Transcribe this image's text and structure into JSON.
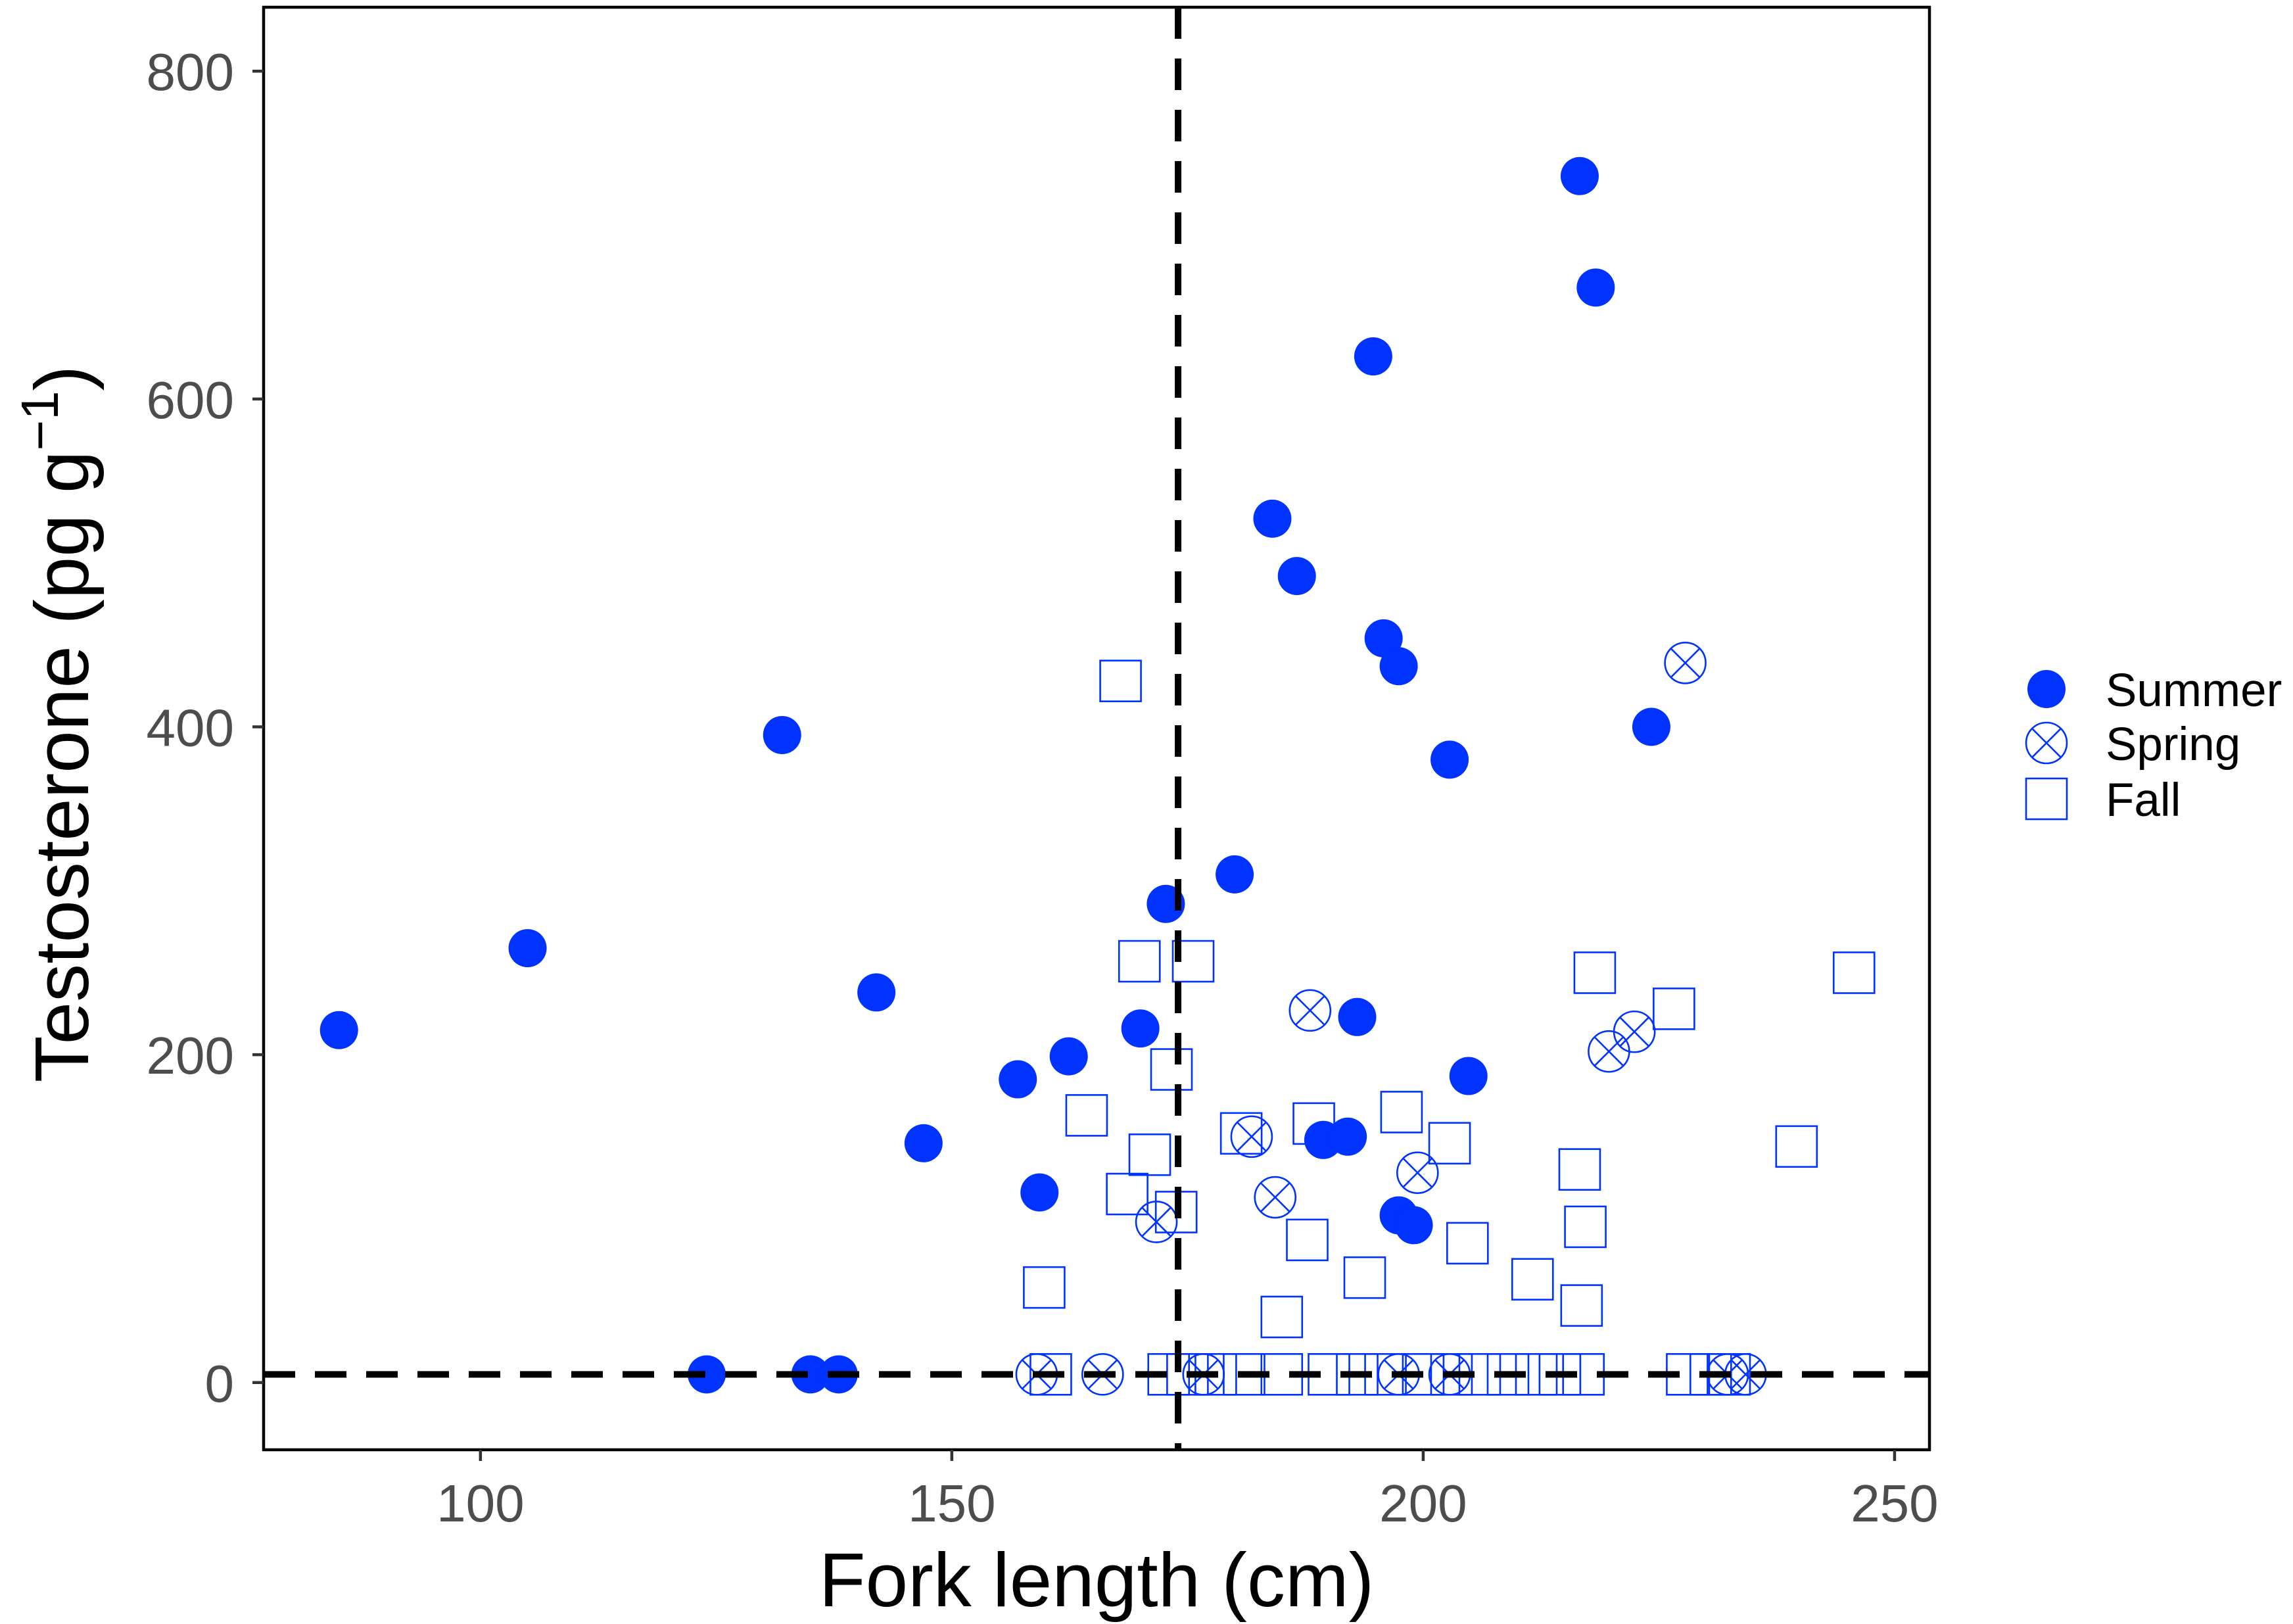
{
  "chart_data": {
    "type": "scatter",
    "title": "",
    "xlabel": "Fork length (cm)",
    "ylabel": {
      "text": "Testosterone (pg g",
      "superscript": "−1",
      "closing": ")"
    },
    "xlim": [
      77,
      253.7
    ],
    "ylim": [
      -41,
      839
    ],
    "x_ticks": [
      100,
      150,
      200,
      250
    ],
    "y_ticks": [
      0,
      200,
      400,
      600,
      800
    ],
    "grid": false,
    "legend_placement": "right",
    "tick_label_color": "#4d4d4d",
    "reference_lines": [
      {
        "orientation": "vertical",
        "x": 174,
        "style": "dashed",
        "color": "#000000"
      },
      {
        "orientation": "horizontal",
        "y": 5,
        "style": "dashed",
        "color": "#000000"
      }
    ],
    "series": [
      {
        "name": "Summer",
        "marker": "filled-circle",
        "color": "#0033ff",
        "points": [
          [
            85,
            215
          ],
          [
            105,
            265
          ],
          [
            132,
            395
          ],
          [
            142,
            238
          ],
          [
            147,
            146
          ],
          [
            157,
            185
          ],
          [
            159.3,
            116
          ],
          [
            162.4,
            199
          ],
          [
            170,
            216
          ],
          [
            172.7,
            292
          ],
          [
            180,
            310
          ],
          [
            184,
            527
          ],
          [
            186.6,
            492
          ],
          [
            193,
            223
          ],
          [
            189.4,
            148
          ],
          [
            192,
            150
          ],
          [
            194.7,
            626
          ],
          [
            195.8,
            454
          ],
          [
            197.4,
            437
          ],
          [
            197.4,
            102
          ],
          [
            199,
            96
          ],
          [
            202.8,
            380
          ],
          [
            204.8,
            187
          ],
          [
            216.6,
            736
          ],
          [
            218.3,
            668
          ],
          [
            224.2,
            400
          ],
          [
            124,
            5
          ],
          [
            135,
            5
          ],
          [
            138,
            5
          ]
        ]
      },
      {
        "name": "Spring",
        "marker": "circle-cross",
        "color": "#0033ff",
        "points": [
          [
            159,
            5
          ],
          [
            166,
            5
          ],
          [
            171.7,
            98
          ],
          [
            176.7,
            5
          ],
          [
            181.8,
            150
          ],
          [
            184.3,
            113
          ],
          [
            188,
            227
          ],
          [
            197.4,
            5
          ],
          [
            199.4,
            128
          ],
          [
            202.8,
            5
          ],
          [
            219.7,
            202
          ],
          [
            222.4,
            214
          ],
          [
            227.8,
            439
          ],
          [
            232.3,
            5
          ],
          [
            234.2,
            5
          ]
        ]
      },
      {
        "name": "Fall",
        "marker": "open-square",
        "color": "#0033ff",
        "points": [
          [
            167.9,
            428
          ],
          [
            169.9,
            257
          ],
          [
            175.6,
            257
          ],
          [
            173.3,
            191
          ],
          [
            164.3,
            163
          ],
          [
            171,
            139
          ],
          [
            168.6,
            115
          ],
          [
            173.8,
            104
          ],
          [
            159.8,
            58
          ],
          [
            180.7,
            152
          ],
          [
            187.7,
            87
          ],
          [
            185,
            40
          ],
          [
            188.4,
            158
          ],
          [
            193.8,
            64
          ],
          [
            197.7,
            165
          ],
          [
            202.8,
            146
          ],
          [
            204.7,
            85
          ],
          [
            211.6,
            63
          ],
          [
            216.6,
            130
          ],
          [
            217.2,
            95
          ],
          [
            216.8,
            47
          ],
          [
            218.2,
            250
          ],
          [
            226.6,
            228
          ],
          [
            239.6,
            144
          ],
          [
            245.7,
            250
          ],
          [
            160.5,
            5
          ],
          [
            173,
            5
          ],
          [
            175,
            5
          ],
          [
            178,
            5
          ],
          [
            181,
            5
          ],
          [
            185,
            5
          ],
          [
            190,
            5
          ],
          [
            193,
            5
          ],
          [
            196,
            5
          ],
          [
            200,
            5
          ],
          [
            203,
            5
          ],
          [
            206,
            5
          ],
          [
            209,
            5
          ],
          [
            212,
            5
          ],
          [
            214.5,
            5
          ],
          [
            217,
            5
          ],
          [
            228,
            5
          ],
          [
            230.5,
            5
          ],
          [
            232.5,
            5
          ]
        ]
      }
    ]
  }
}
